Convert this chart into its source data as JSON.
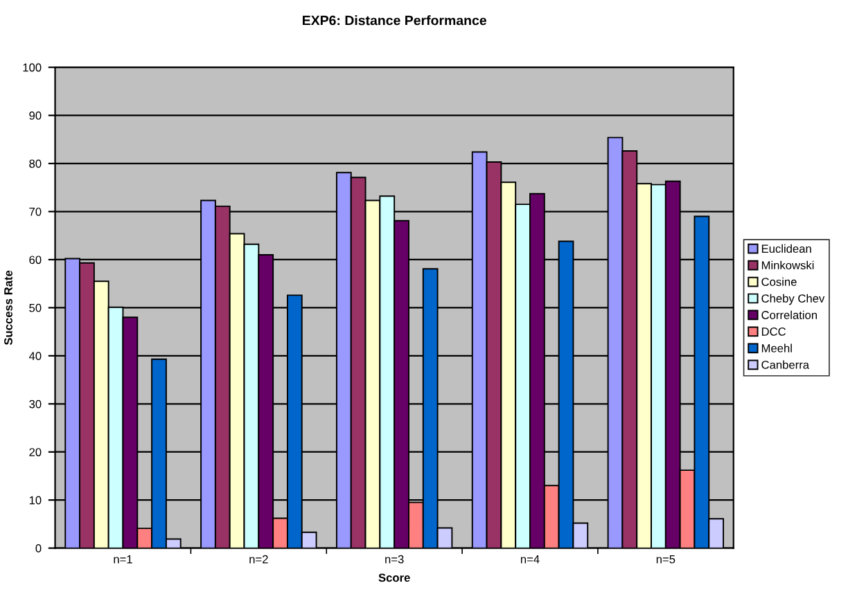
{
  "chart_data": {
    "type": "bar",
    "title": "EXP6: Distance Performance",
    "xlabel": "Score",
    "ylabel": "Success Rate",
    "categories": [
      "n=1",
      "n=2",
      "n=3",
      "n=4",
      "n=5"
    ],
    "series": [
      {
        "name": "Euclidean",
        "color": "#9999ff",
        "values": [
          60.2,
          72.3,
          78.1,
          82.4,
          85.4
        ]
      },
      {
        "name": "Minkowski",
        "color": "#993366",
        "values": [
          59.3,
          71.1,
          77.1,
          80.3,
          82.6
        ]
      },
      {
        "name": "Cosine",
        "color": "#ffffcc",
        "values": [
          55.5,
          65.4,
          72.3,
          76.1,
          75.8
        ]
      },
      {
        "name": "Cheby Chev",
        "color": "#ccffff",
        "values": [
          50.1,
          63.2,
          73.2,
          71.5,
          75.6
        ]
      },
      {
        "name": "Correlation",
        "color": "#660066",
        "values": [
          48,
          61,
          68.1,
          73.7,
          76.3
        ]
      },
      {
        "name": "DCC",
        "color": "#ff8080",
        "values": [
          4.1,
          6.2,
          9.5,
          13,
          16.2
        ]
      },
      {
        "name": "Meehl",
        "color": "#0066cc",
        "values": [
          39.3,
          52.6,
          58.1,
          63.8,
          69
        ]
      },
      {
        "name": "Canberra",
        "color": "#ccccff",
        "values": [
          1.9,
          3.3,
          4.2,
          5.2,
          6.1
        ]
      }
    ],
    "ylim": [
      0,
      100
    ],
    "yticks": [
      0,
      10,
      20,
      30,
      40,
      50,
      60,
      70,
      80,
      90,
      100
    ],
    "grid": "y",
    "legend": "right"
  }
}
